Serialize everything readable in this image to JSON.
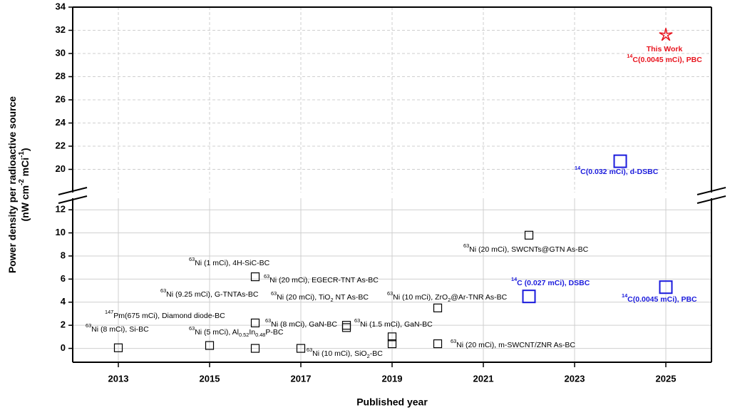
{
  "chart_data": {
    "type": "scatter",
    "x_label": "Published year",
    "y_label": [
      [
        {
          "t": "Power density per radioactive source"
        }
      ],
      [
        {
          "t": "(nW cm"
        },
        {
          "t": "-2",
          "s": "sup"
        },
        {
          "t": " mCi"
        },
        {
          "t": "-1",
          "s": "sup"
        },
        {
          "t": ")"
        }
      ]
    ],
    "xlim": [
      2012,
      2026
    ],
    "xticks": [
      2013,
      2015,
      2017,
      2019,
      2021,
      2023,
      2025
    ],
    "ylim": [
      -1.2,
      34
    ],
    "ybreak": [
      13,
      18
    ],
    "yticks": [
      0,
      2,
      4,
      6,
      8,
      10,
      12,
      20,
      22,
      24,
      26,
      28,
      30,
      32,
      34
    ],
    "grid": true,
    "series": [
      {
        "marker": "square",
        "size": 11,
        "color": "#000000",
        "x": [
          2013,
          2015,
          2016,
          2016,
          2016,
          2017,
          2018,
          2018,
          2019,
          2019,
          2020,
          2020,
          2022
        ],
        "values": [
          0.05,
          0.25,
          0.0,
          2.2,
          6.2,
          0.0,
          1.8,
          2.0,
          0.4,
          1.0,
          0.4,
          3.5,
          9.8
        ]
      },
      {
        "marker": "square",
        "size": 17,
        "color": "#1a1adc",
        "x": [
          2022,
          2024,
          2025
        ],
        "values": [
          4.5,
          20.7,
          5.3
        ]
      },
      {
        "marker": "star",
        "size": 12,
        "color": "#e8141e",
        "x": [
          2025
        ],
        "values": [
          31.6
        ]
      }
    ],
    "annotations": [
      {
        "runs": [
          {
            "t": "63",
            "s": "sup"
          },
          {
            "t": "Ni (8 mCi), Si-BC"
          }
        ]
      },
      {
        "runs": [
          {
            "t": "147",
            "s": "sup"
          },
          {
            "t": "Pm(675 mCi), Diamond diode-BC"
          }
        ]
      },
      {
        "runs": [
          {
            "t": "63",
            "s": "sup"
          },
          {
            "t": "Ni (5 mCi), Al"
          },
          {
            "t": "0.52",
            "s": "sub"
          },
          {
            "t": "In"
          },
          {
            "t": "0.48",
            "s": "sub"
          },
          {
            "t": "P-BC"
          }
        ]
      },
      {
        "runs": [
          {
            "t": "63",
            "s": "sup"
          },
          {
            "t": "Ni (9.25 mCi), G-TNTAs-BC"
          }
        ]
      },
      {
        "runs": [
          {
            "t": "63",
            "s": "sup"
          },
          {
            "t": "Ni (1 mCi), 4H-SiC-BC"
          }
        ]
      },
      {
        "runs": [
          {
            "t": "63",
            "s": "sup"
          },
          {
            "t": "Ni (20 mCi), EGECR-TNT As-BC"
          }
        ]
      },
      {
        "runs": [
          {
            "t": "63",
            "s": "sup"
          },
          {
            "t": "Ni (20 mCi), TiO"
          },
          {
            "t": "2",
            "s": "sub"
          },
          {
            "t": " NT As-BC"
          }
        ]
      },
      {
        "runs": [
          {
            "t": "63",
            "s": "sup"
          },
          {
            "t": "Ni (8 mCi), GaN-BC"
          }
        ]
      },
      {
        "runs": [
          {
            "t": "63",
            "s": "sup"
          },
          {
            "t": "Ni (1.5 mCi), GaN-BC"
          }
        ]
      },
      {
        "runs": [
          {
            "t": "63",
            "s": "sup"
          },
          {
            "t": "Ni (10 mCi), SiO"
          },
          {
            "t": "2",
            "s": "sub"
          },
          {
            "t": "-BC"
          }
        ]
      },
      {
        "runs": [
          {
            "t": "63",
            "s": "sup"
          },
          {
            "t": "Ni (10 mCi), ZrO"
          },
          {
            "t": "2",
            "s": "sub"
          },
          {
            "t": "@Ar-TNR As-BC"
          }
        ]
      },
      {
        "runs": [
          {
            "t": "63",
            "s": "sup"
          },
          {
            "t": "Ni (20 mCi), m-SWCNT/ZNR As-BC"
          }
        ]
      },
      {
        "runs": [
          {
            "t": "63",
            "s": "sup"
          },
          {
            "t": "Ni (20 mCi), SWCNTs@GTN As-BC"
          }
        ]
      },
      {
        "color": "#1a1adc",
        "bold": true,
        "runs": [
          {
            "t": "14",
            "s": "sup"
          },
          {
            "t": "C (0.027 mCi), DSBC"
          }
        ]
      },
      {
        "color": "#1a1adc",
        "bold": true,
        "runs": [
          {
            "t": "14",
            "s": "sup"
          },
          {
            "t": "C(0.032 mCi), d-DSBC"
          }
        ]
      },
      {
        "color": "#1a1adc",
        "bold": true,
        "runs": [
          {
            "t": "14",
            "s": "sup"
          },
          {
            "t": "C(0.0045 mCi), PBC"
          }
        ]
      },
      {
        "color": "#e8141e",
        "bold": true,
        "runs": [
          {
            "t": "This Work"
          }
        ]
      },
      {
        "color": "#e8141e",
        "bold": true,
        "runs": [
          {
            "t": "14",
            "s": "sup"
          },
          {
            "t": "C(0.0045 mCi), PBC"
          }
        ]
      }
    ]
  }
}
